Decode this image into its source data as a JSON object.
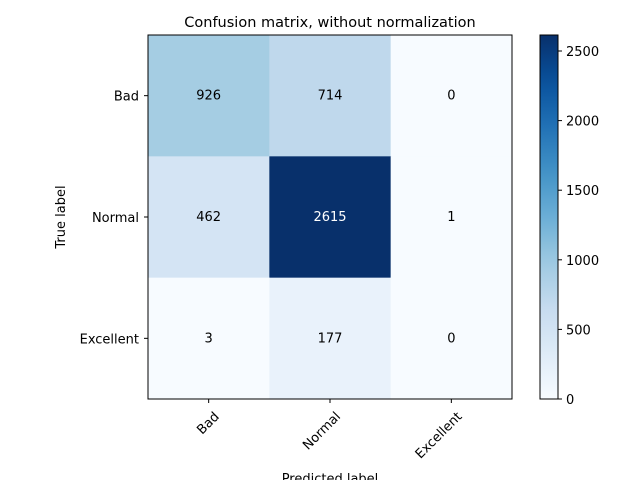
{
  "chart_data": {
    "type": "heatmap",
    "title": "Confusion matrix, without normalization",
    "xlabel": "Predicted label",
    "ylabel": "True label",
    "x_categories": [
      "Bad",
      "Normal",
      "Excellent"
    ],
    "y_categories": [
      "Bad",
      "Normal",
      "Excellent"
    ],
    "values": [
      [
        926,
        714,
        0
      ],
      [
        462,
        2615,
        1
      ],
      [
        3,
        177,
        0
      ]
    ],
    "colormap": "Blues",
    "colorbar": {
      "range": [
        0,
        2615
      ],
      "ticks": [
        0,
        500,
        1000,
        1500,
        2000,
        2500
      ]
    },
    "colors": {
      "low": "#f7fbff",
      "high": "#08306b",
      "text_dark_bg": "#ffffff",
      "text_light_bg": "#000000"
    }
  }
}
